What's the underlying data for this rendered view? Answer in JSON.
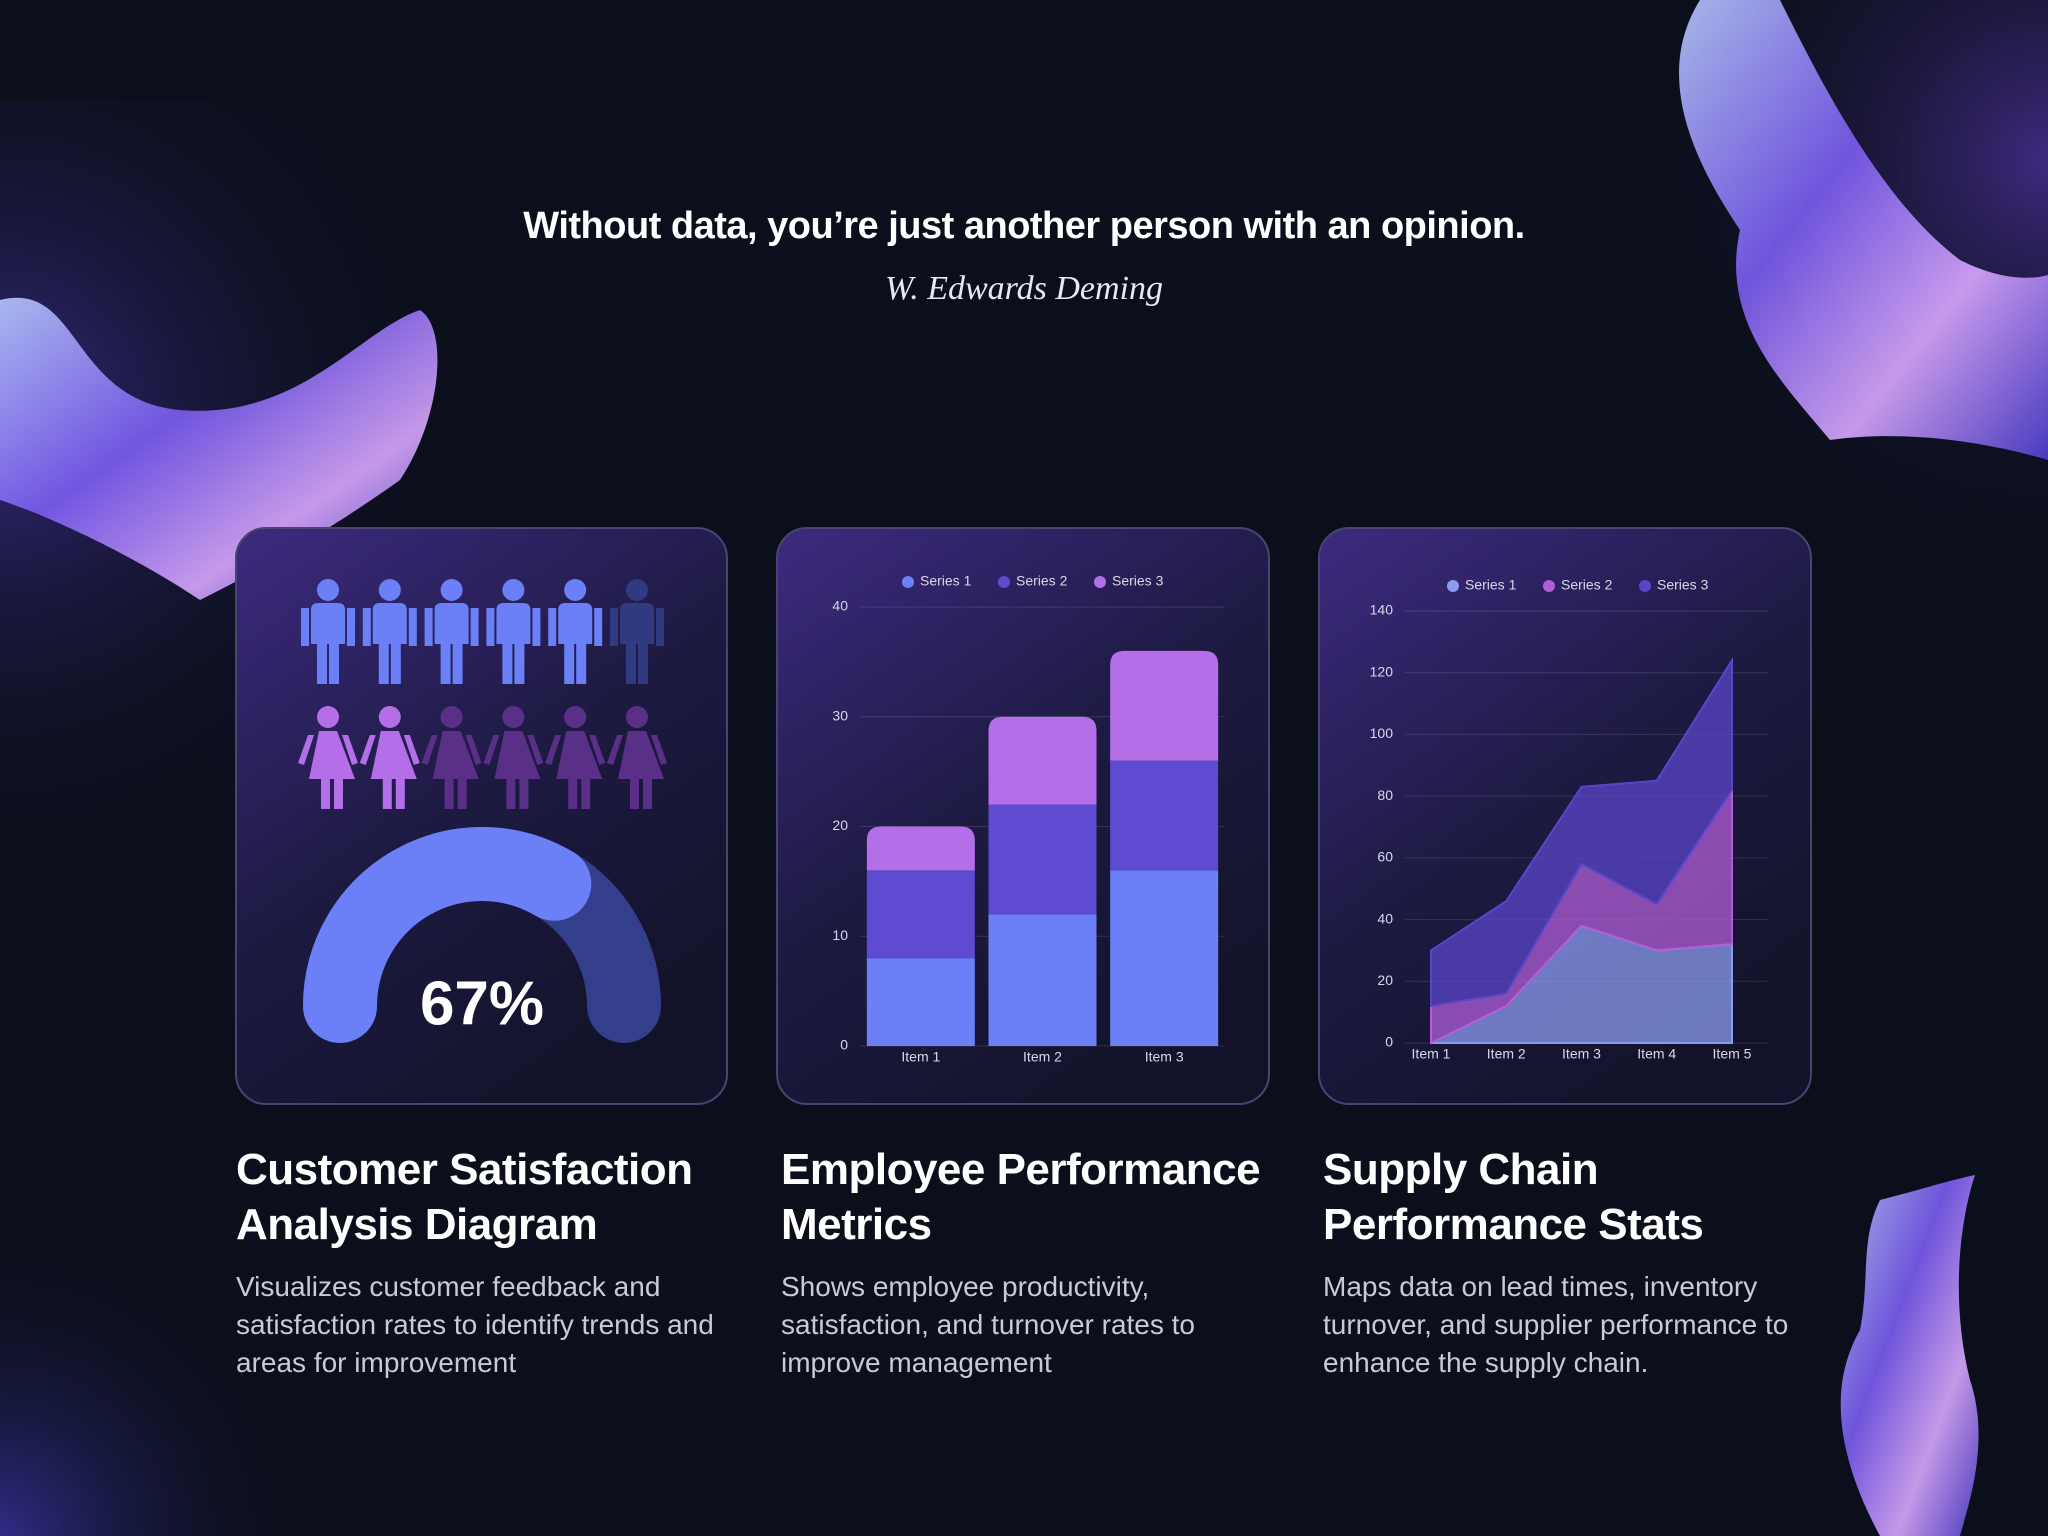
{
  "quote": "Without data, you’re just another person with an opinion.",
  "author": "W. Edwards Deming",
  "chart_data": [
    {
      "type": "gauge",
      "title": "Customer Satisfaction Analysis Diagram",
      "subtitle": "Visualizes customer feedback and satisfaction rates to identify trends and areas for improvement",
      "values": [
        67
      ],
      "value_labels": [
        "67%"
      ],
      "ylim": [
        0,
        100
      ],
      "color": "#6b7ff7",
      "track_color": "#343f8c",
      "icon_rows": [
        {
          "icon": "male",
          "filled": 5,
          "total": 6,
          "color": "#6b7ff7",
          "empty_color": "#2f3a80"
        },
        {
          "icon": "female",
          "filled": 2,
          "total": 6,
          "color": "#b46ee8",
          "empty_color": "#5a2f88"
        }
      ]
    },
    {
      "type": "stacked_bar",
      "title": "Employee Performance Metrics",
      "subtitle": "Shows employee productivity, satisfaction, and turnover rates to improve management",
      "categories": [
        "Item 1",
        "Item 2",
        "Item 3"
      ],
      "series": [
        {
          "name": "Series 1",
          "color": "#6b7ff7",
          "values": [
            8,
            12,
            16
          ]
        },
        {
          "name": "Series 2",
          "color": "#5f4bd1",
          "values": [
            8,
            10,
            10
          ]
        },
        {
          "name": "Series 3",
          "color": "#b46ee8",
          "values": [
            4,
            8,
            10
          ]
        }
      ],
      "ylim": [
        0,
        40
      ],
      "yticks": [
        0,
        10,
        20,
        30,
        40
      ],
      "grid": true,
      "legend": "top"
    },
    {
      "type": "stacked_area",
      "title": "Supply Chain Performance Stats",
      "subtitle": "Maps data on lead times, inventory turnover, and supplier performance to enhance the supply chain.",
      "categories": [
        "Item 1",
        "Item 2",
        "Item 3",
        "Item 4",
        "Item 5"
      ],
      "series": [
        {
          "name": "Series 1",
          "color": "#8b9cf0",
          "values": [
            0,
            12,
            38,
            30,
            32
          ]
        },
        {
          "name": "Series 2",
          "color": "#b05fd8",
          "values": [
            12,
            4,
            20,
            15,
            50
          ]
        },
        {
          "name": "Series 3",
          "color": "#5a45c9",
          "values": [
            18,
            30,
            25,
            40,
            42
          ]
        }
      ],
      "ylim": [
        0,
        140
      ],
      "yticks": [
        0,
        20,
        40,
        60,
        80,
        100,
        120,
        140
      ],
      "grid": true,
      "legend": "top"
    }
  ]
}
